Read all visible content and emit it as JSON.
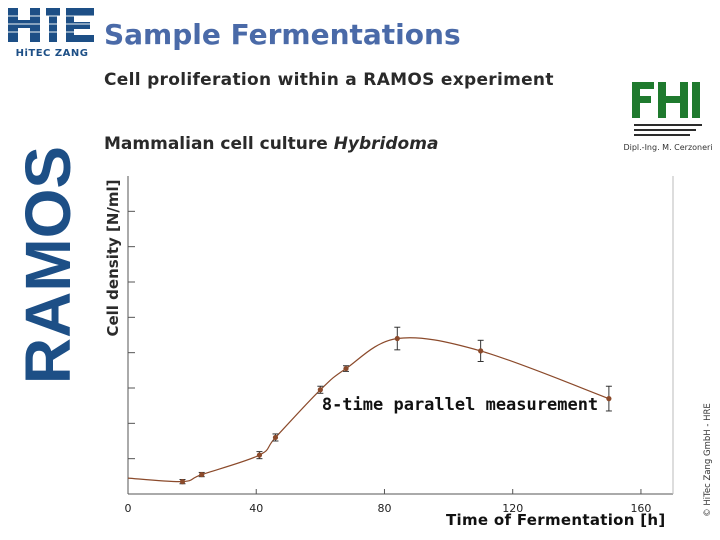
{
  "header": {
    "title": "Sample Fermentations",
    "subtitle": "Cell proliferation within a RAMOS experiment",
    "culture_prefix": "Mammalian cell culture ",
    "culture_name": "Hybridoma"
  },
  "logos": {
    "company_caption": "HiTEC ZANG",
    "ramos": "RAMOS",
    "fh_sub": "Dipl.-Ing. M. Cerzoneri"
  },
  "footer": {
    "copyright": "© HiTec Zang GmbH - HRE"
  },
  "colors": {
    "title": "#4a6aa8",
    "series": "#8b4a2b",
    "ramos_logo": "#1d4f86",
    "fh_logo": "#1f7a2e",
    "axis": "#555555"
  },
  "chart_data": {
    "type": "line",
    "title": "",
    "xlabel": "Time of Fermentation [h]",
    "ylabel": "Cell density [N/ml]",
    "annotation": "8-time parallel measurement",
    "xlim": [
      0,
      170
    ],
    "ylim": [
      0,
      9
    ],
    "x_ticks": [
      0,
      40,
      80,
      120,
      160
    ],
    "y_ticks": [
      1,
      2,
      3,
      4,
      5,
      6,
      7,
      8
    ],
    "x_tick_labels": [
      "0",
      "40",
      "80",
      "120",
      "160"
    ],
    "grid": false,
    "series": [
      {
        "x": [
          0,
          17,
          23,
          41,
          46,
          60,
          68,
          84,
          110,
          150
        ],
        "y": [
          0.45,
          0.35,
          0.55,
          1.1,
          1.6,
          2.95,
          3.55,
          4.4,
          4.05,
          2.7
        ],
        "err": [
          0,
          0.06,
          0.06,
          0.1,
          0.1,
          0.1,
          0.08,
          0.32,
          0.3,
          0.35
        ]
      }
    ]
  }
}
